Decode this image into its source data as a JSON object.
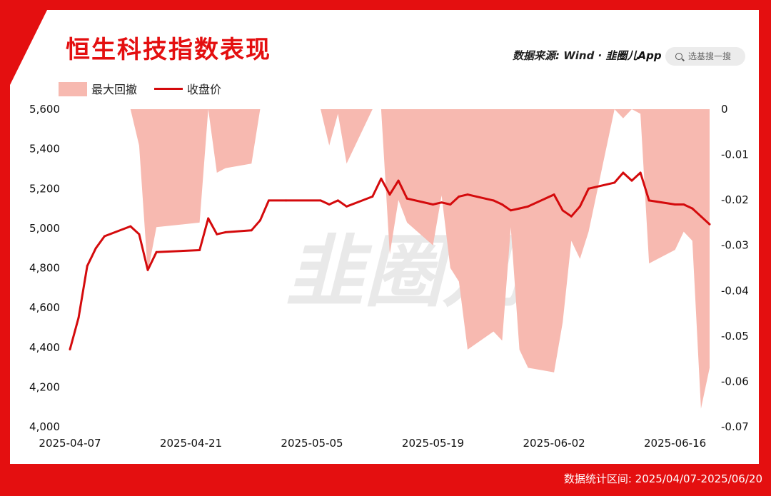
{
  "header": {
    "title": "恒生科技指数表现",
    "source_label": "数据来源: Wind",
    "source_brand": "韭圈儿App",
    "search_placeholder": "选基搜一搜"
  },
  "legend": {
    "drawdown_label": "最大回撤",
    "close_label": "收盘价"
  },
  "watermark": "韭圈儿",
  "footer": {
    "range_text": "数据统计区间: 2025/04/07-2025/06/20"
  },
  "colors": {
    "brand_red": "#e40f10",
    "line_red": "#d40a0c",
    "drawdown_fill": "#f7b9b0"
  },
  "chart_data": {
    "type": "line",
    "title": "恒生科技指数表现",
    "x_tick_labels": [
      "2025-04-07",
      "2025-04-21",
      "2025-05-05",
      "2025-05-19",
      "2025-06-02",
      "2025-06-16"
    ],
    "y_left_ticks": [
      "5,600",
      "5,400",
      "5,200",
      "5,000",
      "4,800",
      "4,600",
      "4,400",
      "4,200",
      "4,000"
    ],
    "y_right_ticks": [
      "0",
      "-0.01",
      "-0.02",
      "-0.03",
      "-0.04",
      "-0.05",
      "-0.06",
      "-0.07"
    ],
    "y_left_range": [
      4000,
      5600
    ],
    "y_right_range": [
      -0.07,
      0
    ],
    "legend_position": "top-left",
    "grid": false,
    "x": [
      "2025-04-07",
      "2025-04-08",
      "2025-04-09",
      "2025-04-10",
      "2025-04-11",
      "2025-04-14",
      "2025-04-15",
      "2025-04-16",
      "2025-04-17",
      "2025-04-22",
      "2025-04-23",
      "2025-04-24",
      "2025-04-25",
      "2025-04-28",
      "2025-04-29",
      "2025-04-30",
      "2025-05-02",
      "2025-05-06",
      "2025-05-07",
      "2025-05-08",
      "2025-05-09",
      "2025-05-12",
      "2025-05-13",
      "2025-05-14",
      "2025-05-15",
      "2025-05-16",
      "2025-05-19",
      "2025-05-20",
      "2025-05-21",
      "2025-05-22",
      "2025-05-23",
      "2025-05-26",
      "2025-05-27",
      "2025-05-28",
      "2025-05-29",
      "2025-05-30",
      "2025-06-02",
      "2025-06-03",
      "2025-06-04",
      "2025-06-05",
      "2025-06-06",
      "2025-06-09",
      "2025-06-10",
      "2025-06-11",
      "2025-06-12",
      "2025-06-13",
      "2025-06-16",
      "2025-06-17",
      "2025-06-18",
      "2025-06-19",
      "2025-06-20"
    ],
    "series": [
      {
        "name": "收盘价",
        "axis": "left",
        "values": [
          4390,
          4550,
          4810,
          4900,
          4960,
          5010,
          4970,
          4790,
          4880,
          4890,
          5050,
          4970,
          4980,
          4990,
          5040,
          5140,
          5140,
          5140,
          5120,
          5140,
          5110,
          5160,
          5250,
          5170,
          5240,
          5150,
          5120,
          5130,
          5120,
          5160,
          5170,
          5140,
          5120,
          5090,
          5100,
          5110,
          5170,
          5090,
          5060,
          5110,
          5200,
          5230,
          5280,
          5240,
          5280,
          5140,
          5120,
          5120,
          5100,
          5060,
          5020
        ]
      },
      {
        "name": "最大回撤",
        "axis": "right",
        "values": [
          0,
          0,
          0,
          0,
          0,
          0,
          -0.008,
          -0.036,
          -0.026,
          -0.025,
          0,
          -0.014,
          -0.013,
          -0.012,
          0,
          0,
          0,
          0,
          -0.008,
          -0.001,
          -0.012,
          0,
          0,
          -0.032,
          -0.02,
          -0.025,
          -0.03,
          -0.019,
          -0.035,
          -0.038,
          -0.053,
          -0.049,
          -0.051,
          -0.026,
          -0.053,
          -0.057,
          -0.058,
          -0.047,
          -0.029,
          -0.033,
          -0.027,
          0,
          -0.002,
          0,
          -0.001,
          -0.034,
          -0.031,
          -0.027,
          -0.029,
          -0.066,
          -0.057
        ]
      }
    ]
  }
}
